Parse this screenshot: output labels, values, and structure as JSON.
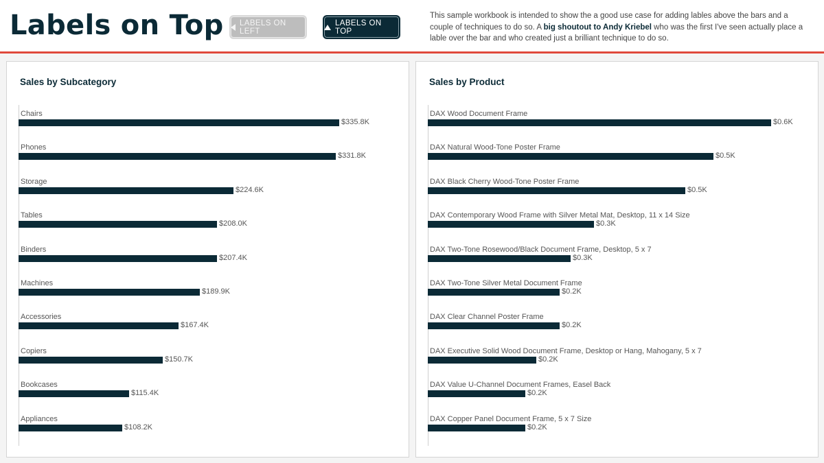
{
  "header": {
    "title": "Labels on Top",
    "toggle_left_label": "LABELS ON LEFT",
    "toggle_top_label": "LABELS ON TOP",
    "description_pre": "This sample workbook is intended to show the a good use case for adding lables above the bars and a couple of techniques to do so. A ",
    "description_bold": "big shoutout to Andy Kriebel",
    "description_post": " who was the first I've seen actually place a lable over the bar and who created just a brilliant technique to do so."
  },
  "colors": {
    "bar": "#0b2a36",
    "accent": "#e0493b"
  },
  "chart_data": [
    {
      "type": "bar",
      "orientation": "horizontal",
      "title": "Sales by Subcategory",
      "categories": [
        "Chairs",
        "Phones",
        "Storage",
        "Tables",
        "Binders",
        "Machines",
        "Accessories",
        "Copiers",
        "Bookcases",
        "Appliances"
      ],
      "values": [
        335.8,
        331.8,
        224.6,
        208.0,
        207.4,
        189.9,
        167.4,
        150.7,
        115.4,
        108.2
      ],
      "value_labels": [
        "$335.8K",
        "$331.8K",
        "$224.6K",
        "$208.0K",
        "$207.4K",
        "$189.9K",
        "$167.4K",
        "$150.7K",
        "$115.4K",
        "$108.2K"
      ],
      "unit": "$K",
      "xlim": [
        0,
        365
      ]
    },
    {
      "type": "bar",
      "orientation": "horizontal",
      "title": "Sales by Product",
      "categories": [
        "DAX Wood Document Frame",
        "DAX Natural Wood-Tone Poster Frame",
        "DAX Black Cherry Wood-Tone Poster Frame",
        "DAX Contemporary Wood Frame with Silver Metal Mat, Desktop, 11 x 14 Size",
        "DAX Two-Tone Rosewood/Black Document Frame, Desktop, 5 x 7",
        "DAX Two-Tone Silver Metal Document Frame",
        "DAX Clear Channel Poster Frame",
        "DAX Executive Solid Wood Document Frame, Desktop or Hang, Mahogany, 5 x 7",
        "DAX Value U-Channel Document Frames, Easel Back",
        "DAX Copper Panel Document Frame, 5 x 7 Size"
      ],
      "values": [
        0.6,
        0.5,
        0.45,
        0.29,
        0.25,
        0.23,
        0.23,
        0.19,
        0.17,
        0.17
      ],
      "value_labels": [
        "$0.6K",
        "$0.5K",
        "$0.5K",
        "$0.3K",
        "$0.3K",
        "$0.2K",
        "$0.2K",
        "$0.2K",
        "$0.2K",
        "$0.2K"
      ],
      "unit": "$K",
      "xlim": [
        0,
        0.61
      ]
    }
  ]
}
